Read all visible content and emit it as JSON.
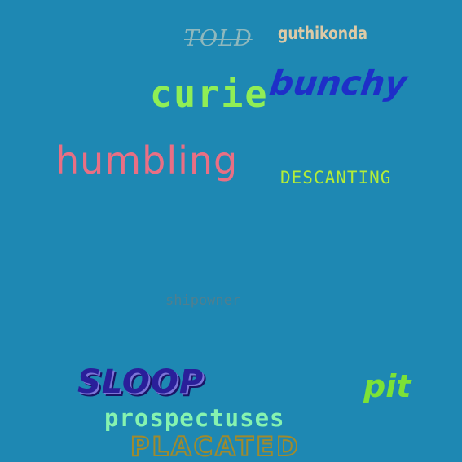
{
  "words": {
    "told": "TOLD",
    "guthikonda": "guthikonda",
    "curie": "curie",
    "bunchy": "bunchy",
    "humbling": "humbling",
    "descanting": "DESCANTING",
    "shipowner": "shipowner",
    "sloop": "SLOOP",
    "pit": "pit",
    "prospectuses": "prospectuses",
    "placated": "PLACATED"
  },
  "colors": {
    "background": "#1e88b3",
    "told": "#8fb8bd",
    "guthikonda": "#ddcaa6",
    "curie": "#90ee55",
    "bunchy": "#1e2fc8",
    "humbling": "#e96f84",
    "descanting": "#b4ed36",
    "shipowner": "#4f7f8f",
    "sloop": "#2a1f9a",
    "pit": "#7ce236",
    "prospectuses": "#86f3b0",
    "placated": "#a08a2c"
  }
}
